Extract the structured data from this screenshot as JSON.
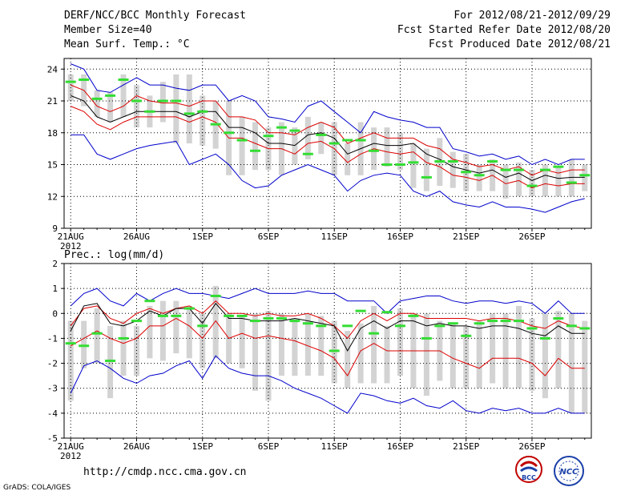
{
  "header": {
    "title": "DERF/NCC/BCC Monthly Forecast",
    "member_size": "Member Size=40",
    "variable": "Mean Surf. Temp.: °C",
    "for_period": "For 2012/08/21-2012/09/29",
    "started": "Fcst Started Refer Date 2012/08/20",
    "produced": "Fcst Produced Date 2012/08/21"
  },
  "footer": {
    "url": "http://cmdp.ncc.cma.gov.cn",
    "grads": "GrADS: COLA/IGES",
    "logo1_text": "BCC",
    "logo2_text": "NCC"
  },
  "colors": {
    "envelope": "#0000cc",
    "spread": "#dd0000",
    "mean": "#000000",
    "median": "#33dd33",
    "box": "#d3d3d3"
  },
  "chart_data": [
    {
      "type": "line",
      "title": "Mean Surf. Temp.: °C",
      "x_tick_labels": [
        "21AUG",
        "26AUG",
        "1SEP",
        "6SEP",
        "11SEP",
        "16SEP",
        "21SEP",
        "26SEP"
      ],
      "x_year_label": "2012",
      "ylim": [
        9,
        25
      ],
      "y_ticks": [
        9,
        12,
        15,
        18,
        21,
        24
      ],
      "days": 40,
      "series": {
        "max": [
          24.5,
          24.0,
          22.0,
          21.8,
          22.5,
          23.2,
          22.5,
          22.5,
          22.2,
          22.0,
          22.5,
          22.5,
          21.0,
          21.5,
          21.0,
          19.5,
          19.3,
          19.0,
          20.5,
          21.0,
          20.0,
          19.0,
          18.0,
          20.0,
          19.5,
          19.2,
          19.0,
          18.5,
          18.5,
          16.5,
          16.2,
          15.8,
          16.0,
          15.5,
          15.8,
          15.0,
          15.5,
          15.0,
          15.5,
          15.5
        ],
        "upper": [
          22.5,
          22.0,
          20.5,
          20.0,
          20.5,
          21.5,
          21.0,
          20.8,
          20.8,
          20.5,
          21.0,
          21.0,
          19.5,
          19.5,
          19.2,
          18.0,
          18.0,
          17.8,
          18.5,
          19.0,
          18.5,
          17.0,
          17.5,
          18.0,
          17.5,
          17.5,
          17.5,
          16.8,
          16.5,
          15.5,
          15.2,
          14.8,
          15.0,
          14.5,
          14.8,
          14.0,
          14.5,
          14.2,
          14.5,
          14.5
        ],
        "mean": [
          21.5,
          21.0,
          19.5,
          19.0,
          19.5,
          20.0,
          20.0,
          20.0,
          20.0,
          19.5,
          20.0,
          20.0,
          18.5,
          18.5,
          18.0,
          17.0,
          17.0,
          16.8,
          17.8,
          18.0,
          17.5,
          16.0,
          16.5,
          17.0,
          16.8,
          16.8,
          17.0,
          16.0,
          15.5,
          14.8,
          14.5,
          14.2,
          14.5,
          13.8,
          14.2,
          13.5,
          14.0,
          13.7,
          13.8,
          13.8
        ],
        "lower": [
          20.5,
          20.0,
          18.8,
          18.3,
          19.0,
          19.5,
          19.5,
          19.5,
          19.5,
          19.0,
          19.5,
          19.0,
          17.5,
          17.5,
          17.0,
          16.5,
          16.5,
          16.0,
          17.0,
          17.2,
          16.5,
          15.2,
          16.0,
          16.5,
          16.2,
          16.0,
          16.2,
          15.2,
          14.8,
          14.0,
          13.8,
          13.5,
          14.0,
          13.2,
          13.5,
          12.8,
          13.2,
          13.0,
          13.2,
          13.2
        ],
        "min": [
          17.8,
          17.8,
          16.0,
          15.5,
          16.0,
          16.5,
          16.8,
          17.0,
          17.2,
          15.0,
          15.5,
          16.0,
          15.0,
          13.5,
          12.8,
          13.0,
          14.0,
          14.5,
          15.0,
          14.5,
          14.0,
          12.5,
          13.5,
          14.0,
          14.2,
          14.0,
          12.5,
          12.0,
          12.5,
          11.5,
          11.2,
          11.0,
          11.5,
          11.0,
          11.0,
          10.8,
          10.5,
          11.0,
          11.5,
          11.8
        ],
        "box_hi": [
          23.5,
          23.5,
          22.0,
          21.8,
          23.5,
          22.5,
          21.5,
          22.8,
          23.5,
          23.5,
          21.5,
          21.0,
          21.0,
          19.5,
          19.0,
          18.5,
          19.0,
          18.5,
          19.5,
          19.0,
          19.0,
          17.0,
          19.0,
          18.5,
          18.5,
          18.0,
          17.0,
          16.5,
          17.5,
          16.2,
          16.0,
          15.0,
          15.5,
          15.0,
          15.2,
          14.5,
          15.0,
          14.8,
          15.5,
          15.0
        ],
        "box_lo": [
          21.0,
          20.5,
          19.5,
          19.0,
          19.5,
          18.5,
          18.5,
          19.0,
          17.0,
          17.0,
          16.8,
          16.5,
          14.0,
          14.0,
          14.5,
          14.5,
          14.0,
          15.0,
          15.5,
          16.0,
          14.0,
          14.0,
          14.0,
          14.5,
          14.8,
          14.5,
          12.8,
          12.5,
          13.0,
          12.8,
          12.5,
          12.5,
          12.5,
          11.8,
          12.0,
          12.0,
          12.0,
          12.0,
          12.0,
          12.5
        ],
        "median": [
          22.8,
          23.0,
          21.2,
          21.5,
          23.0,
          21.0,
          20.0,
          21.0,
          21.0,
          19.8,
          20.0,
          18.8,
          18.0,
          17.3,
          16.3,
          17.7,
          18.5,
          18.2,
          16.0,
          17.8,
          17.0,
          17.3,
          17.3,
          16.3,
          15.0,
          15.0,
          15.2,
          13.8,
          15.3,
          15.3,
          14.3,
          14.0,
          15.3,
          14.5,
          14.5,
          13.0,
          14.5,
          14.8,
          13.3,
          14.0
        ]
      }
    },
    {
      "type": "line",
      "title": "Prec.: log(mm/d)",
      "x_tick_labels": [
        "21AUG",
        "26AUG",
        "1SEP",
        "6SEP",
        "11SEP",
        "16SEP",
        "21SEP",
        "26SEP"
      ],
      "x_year_label": "2012",
      "ylim": [
        -5,
        2
      ],
      "y_ticks": [
        -5,
        -4,
        -3,
        -2,
        -1,
        0,
        1,
        2
      ],
      "days": 40,
      "series": {
        "max": [
          0.3,
          0.8,
          1.0,
          0.5,
          0.3,
          0.8,
          0.5,
          0.8,
          1.0,
          0.8,
          0.8,
          0.7,
          0.6,
          0.8,
          1.0,
          0.8,
          0.8,
          0.8,
          0.9,
          0.8,
          0.8,
          0.5,
          0.5,
          0.5,
          0.0,
          0.5,
          0.6,
          0.7,
          0.7,
          0.5,
          0.4,
          0.5,
          0.5,
          0.4,
          0.5,
          0.4,
          0.0,
          0.5,
          0.0,
          0.0
        ],
        "upper": [
          -0.5,
          0.2,
          0.3,
          -0.2,
          -0.4,
          0.0,
          0.2,
          0.0,
          0.2,
          0.3,
          0.0,
          0.5,
          0.0,
          0.0,
          -0.1,
          0.0,
          -0.1,
          -0.1,
          0.0,
          -0.2,
          -0.5,
          -1.0,
          -0.3,
          0.0,
          -0.3,
          0.0,
          0.0,
          -0.2,
          -0.2,
          -0.2,
          -0.2,
          -0.3,
          -0.2,
          -0.2,
          -0.3,
          -0.5,
          -0.6,
          -0.3,
          -0.5,
          -0.6
        ],
        "mean": [
          -0.7,
          0.3,
          0.4,
          -0.4,
          -0.5,
          -0.3,
          0.1,
          -0.1,
          0.2,
          0.2,
          -0.4,
          0.4,
          -0.2,
          -0.2,
          -0.3,
          -0.3,
          -0.3,
          -0.2,
          -0.3,
          -0.4,
          -0.5,
          -1.5,
          -0.6,
          -0.3,
          -0.6,
          -0.3,
          -0.3,
          -0.5,
          -0.4,
          -0.5,
          -0.5,
          -0.6,
          -0.5,
          -0.5,
          -0.6,
          -0.8,
          -0.9,
          -0.5,
          -0.8,
          -0.8
        ],
        "lower": [
          -1.3,
          -1.0,
          -0.7,
          -1.0,
          -1.2,
          -1.0,
          -0.5,
          -0.5,
          -0.2,
          -0.5,
          -1.0,
          -0.3,
          -1.0,
          -0.8,
          -1.0,
          -0.9,
          -1.0,
          -1.1,
          -1.3,
          -1.5,
          -1.8,
          -2.5,
          -1.5,
          -1.2,
          -1.5,
          -1.5,
          -1.5,
          -1.5,
          -1.5,
          -1.8,
          -2.0,
          -2.2,
          -1.8,
          -1.8,
          -1.8,
          -2.0,
          -2.5,
          -1.8,
          -2.2,
          -2.2
        ],
        "min": [
          -3.2,
          -2.1,
          -1.9,
          -2.2,
          -2.6,
          -2.8,
          -2.5,
          -2.4,
          -2.1,
          -1.9,
          -2.6,
          -1.7,
          -2.2,
          -2.4,
          -2.5,
          -2.5,
          -2.7,
          -3.0,
          -3.2,
          -3.4,
          -3.7,
          -4.0,
          -3.2,
          -3.3,
          -3.5,
          -3.6,
          -3.4,
          -3.7,
          -3.8,
          -3.5,
          -3.9,
          -4.0,
          -3.8,
          -3.9,
          -3.8,
          -4.0,
          -4.0,
          -3.8,
          -4.0,
          -4.0
        ],
        "box_hi": [
          -0.3,
          -0.3,
          0.2,
          -0.5,
          -0.3,
          -0.5,
          0.3,
          0.5,
          0.5,
          0.3,
          0.0,
          1.1,
          0.0,
          -0.1,
          0.0,
          0.1,
          0.0,
          -0.2,
          0.0,
          -0.1,
          -0.3,
          -0.7,
          -0.4,
          0.3,
          -0.5,
          0.2,
          0.0,
          0.0,
          -0.3,
          -0.4,
          -0.5,
          -0.3,
          0.0,
          0.0,
          0.3,
          -0.2,
          0.0,
          0.1,
          0.0,
          -0.3
        ],
        "box_lo": [
          -3.5,
          -2.2,
          -2.0,
          -3.4,
          -2.5,
          -2.5,
          -1.8,
          -1.9,
          -1.6,
          -1.8,
          -2.2,
          -1.8,
          -2.0,
          -2.2,
          -3.1,
          -3.5,
          -2.5,
          -2.5,
          -2.5,
          -2.5,
          -2.8,
          -3.0,
          -2.8,
          -2.8,
          -2.8,
          -2.5,
          -3.0,
          -3.3,
          -2.7,
          -3.0,
          -3.0,
          -3.0,
          -2.8,
          -3.0,
          -3.0,
          -3.1,
          -3.4,
          -3.0,
          -4.0,
          -4.0
        ],
        "median": [
          -1.2,
          -1.3,
          -0.8,
          -1.9,
          -1.0,
          -0.3,
          0.5,
          -0.1,
          -0.1,
          0.2,
          -0.5,
          0.7,
          -0.1,
          -0.1,
          -0.3,
          -0.2,
          -0.2,
          -0.3,
          -0.4,
          -0.5,
          -1.5,
          -0.5,
          0.1,
          -0.8,
          0.05,
          -0.5,
          -0.1,
          -1.0,
          -0.5,
          -0.4,
          -0.9,
          -0.4,
          -0.3,
          -0.3,
          -0.3,
          -0.6,
          -1.0,
          -0.2,
          -0.5,
          -0.6
        ]
      }
    }
  ]
}
